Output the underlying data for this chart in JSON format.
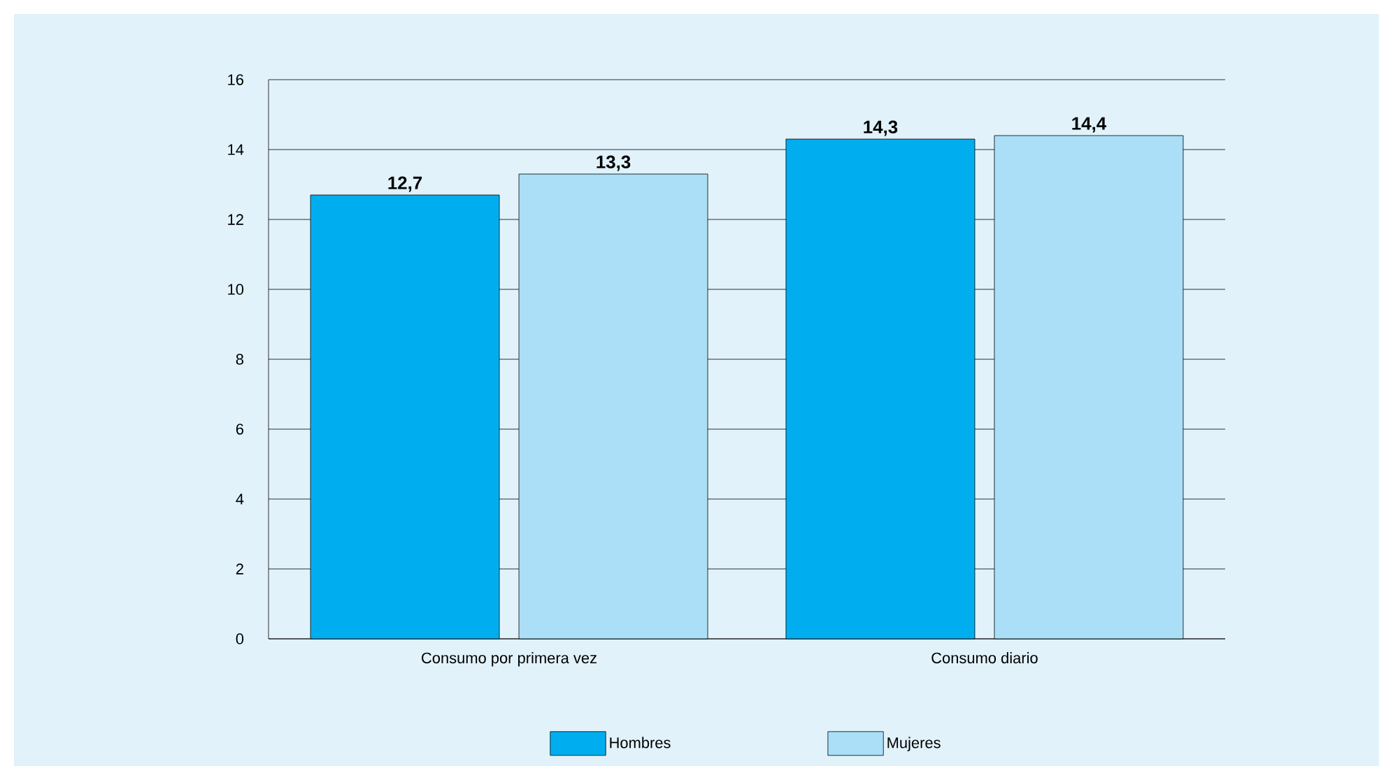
{
  "chart_data": {
    "type": "bar",
    "categories": [
      "Consumo por primera vez",
      "Consumo diario"
    ],
    "series": [
      {
        "name": "Hombres",
        "color": "#00aeef",
        "values": [
          12.7,
          14.3
        ],
        "value_labels": [
          "12,7",
          "14,3"
        ]
      },
      {
        "name": "Mujeres",
        "color": "#aadff7",
        "values": [
          13.3,
          14.4
        ],
        "value_labels": [
          "13,3",
          "14,4"
        ]
      }
    ],
    "ylim": [
      0,
      16
    ],
    "yticks": [
      0,
      2,
      4,
      6,
      8,
      10,
      12,
      14,
      16
    ],
    "grid": "y",
    "legend": "bottom"
  }
}
